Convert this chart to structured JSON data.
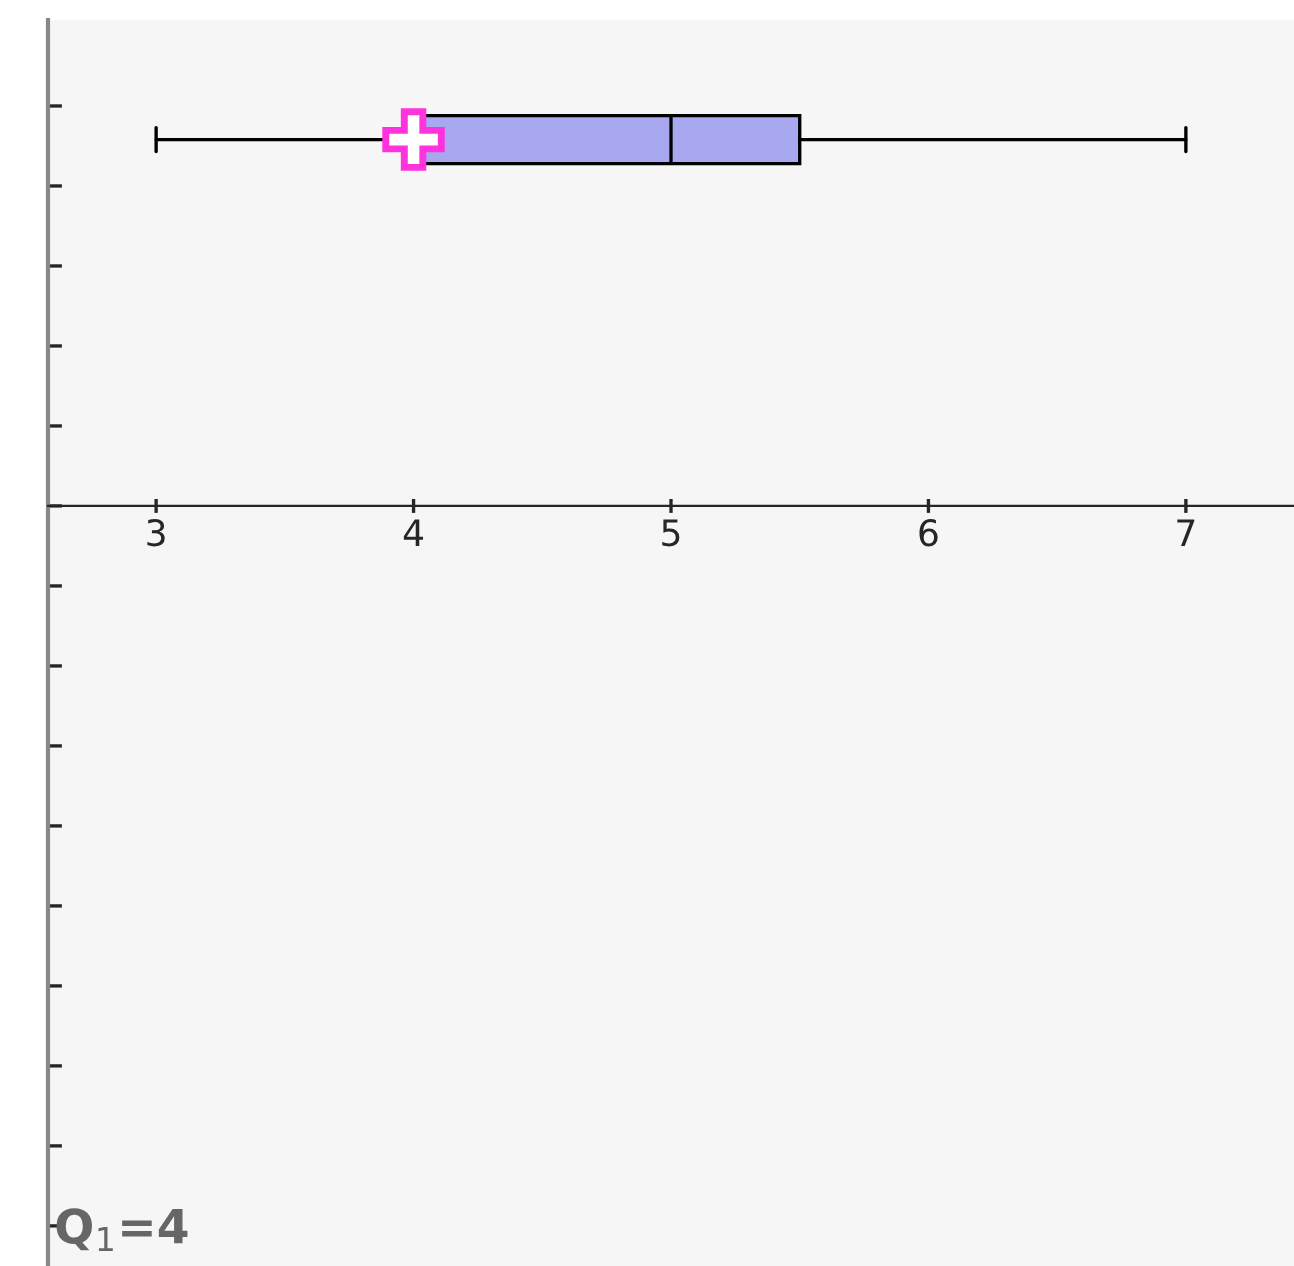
{
  "chart_data": {
    "type": "box",
    "orientation": "horizontal",
    "categories": [
      null
    ],
    "boxes": [
      {
        "low": 3,
        "q1": 4,
        "median": 5,
        "q3": 5.5,
        "high": 7
      }
    ],
    "color": "#a8a8f0",
    "xlim": [
      2.58,
      7.42
    ],
    "xticks": [
      3,
      4,
      5,
      6,
      7
    ],
    "tick_labels": "x",
    "grid": false,
    "legend": false,
    "series": [
      {
        "type": "scatter",
        "values": [
          4
        ],
        "color": "#ff33dd",
        "marker": "cross"
      }
    ],
    "annotations": [
      "Q$_{1}$=4"
    ]
  }
}
